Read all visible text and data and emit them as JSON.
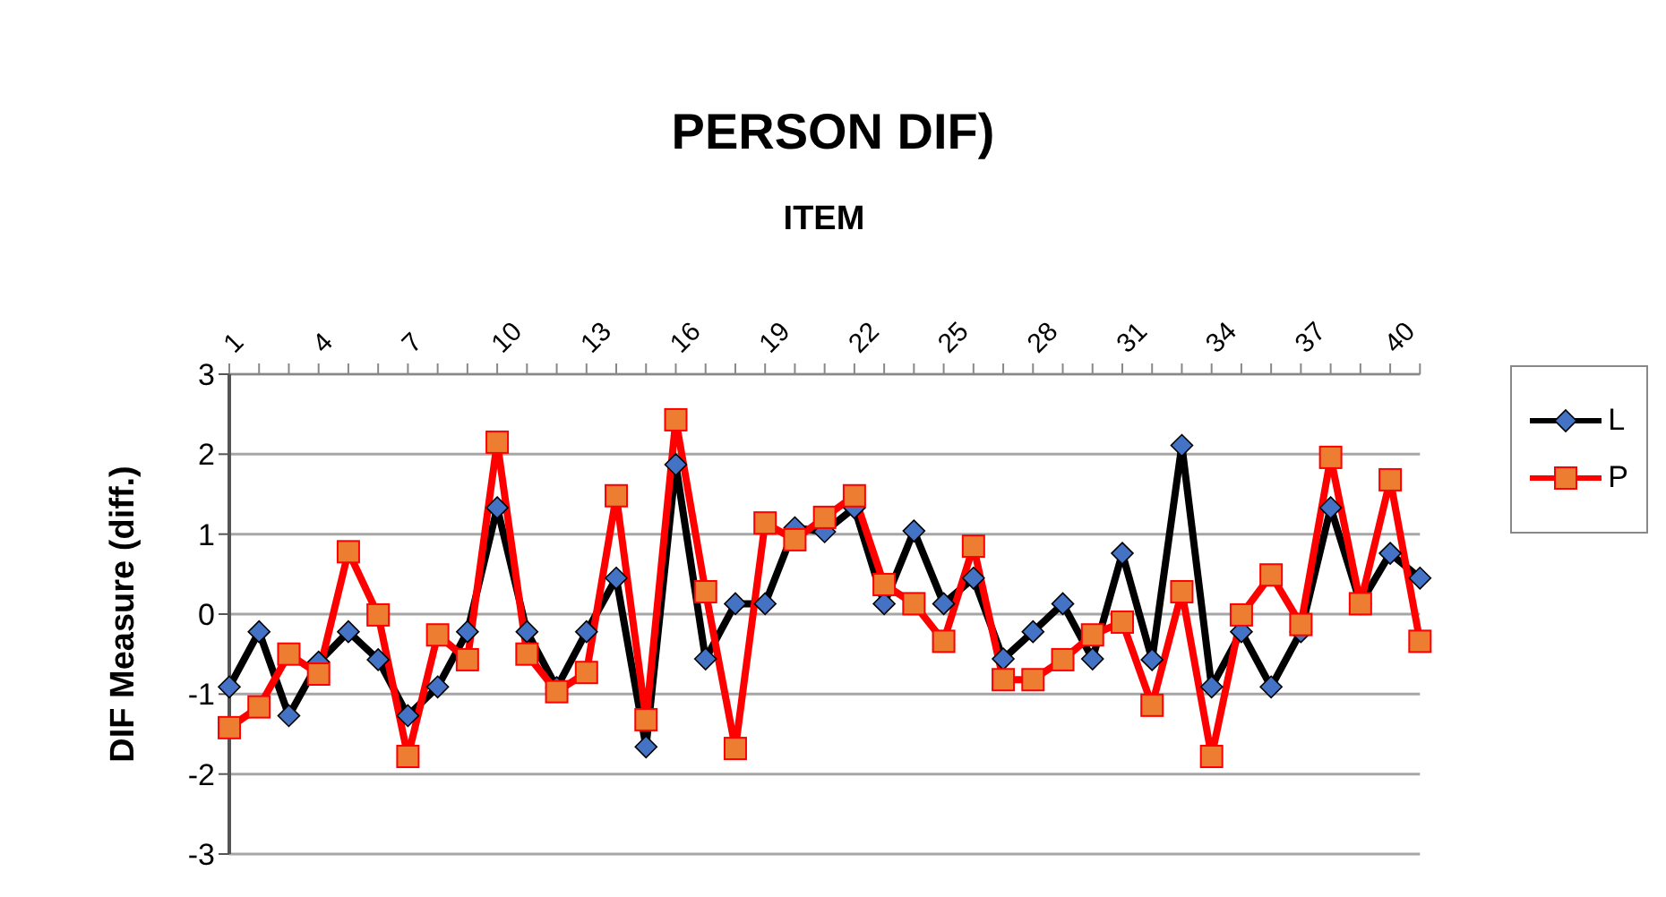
{
  "chart_data": {
    "type": "line",
    "title": "PERSON DIF)",
    "xlabel": "ITEM",
    "ylabel": "DIF Measure (diff.)",
    "categories": [
      "1",
      null,
      null,
      "4",
      null,
      null,
      "7",
      null,
      null,
      "10",
      null,
      null,
      "13",
      null,
      null,
      "16",
      null,
      null,
      "19",
      null,
      null,
      "22",
      null,
      null,
      "25",
      null,
      null,
      "28",
      null,
      null,
      "31",
      null,
      null,
      "34",
      null,
      null,
      "37",
      null,
      null,
      "40",
      null
    ],
    "series": [
      {
        "name": "L",
        "color": "#000000",
        "marker": "diamond",
        "values": [
          -0.91,
          -0.22,
          -1.27,
          -0.6,
          -0.22,
          -0.57,
          -1.27,
          -0.91,
          -0.22,
          1.33,
          -0.22,
          -0.92,
          -0.22,
          0.45,
          -1.66,
          1.87,
          -0.56,
          0.13,
          0.13,
          1.08,
          1.03,
          1.33,
          0.13,
          1.04,
          0.13,
          0.45,
          -0.56,
          -0.22,
          0.13,
          -0.56,
          0.76,
          -0.57,
          2.11,
          -0.91,
          -0.22,
          -0.91,
          -0.22,
          1.33,
          0.13,
          0.76,
          0.45
        ]
      },
      {
        "name": "P",
        "color": "#ff0000",
        "marker": "square",
        "values": [
          -1.42,
          -1.16,
          -0.5,
          -0.75,
          0.78,
          -0.01,
          -1.78,
          -0.26,
          -0.57,
          2.15,
          -0.5,
          -0.97,
          -0.73,
          1.48,
          -1.32,
          2.43,
          0.28,
          -1.68,
          1.14,
          0.93,
          1.21,
          1.48,
          0.37,
          0.13,
          -0.34,
          0.85,
          -0.82,
          -0.82,
          -0.57,
          -0.26,
          -0.1,
          -1.14,
          0.28,
          -1.78,
          -0.01,
          0.49,
          -0.13,
          1.96,
          0.13,
          1.68,
          -0.34
        ]
      }
    ],
    "ylim": [
      -3,
      3
    ],
    "yticks": [
      -3,
      -2,
      -1,
      0,
      1,
      2,
      3
    ],
    "grid": "y",
    "legend": "right",
    "line_style": "solid"
  }
}
